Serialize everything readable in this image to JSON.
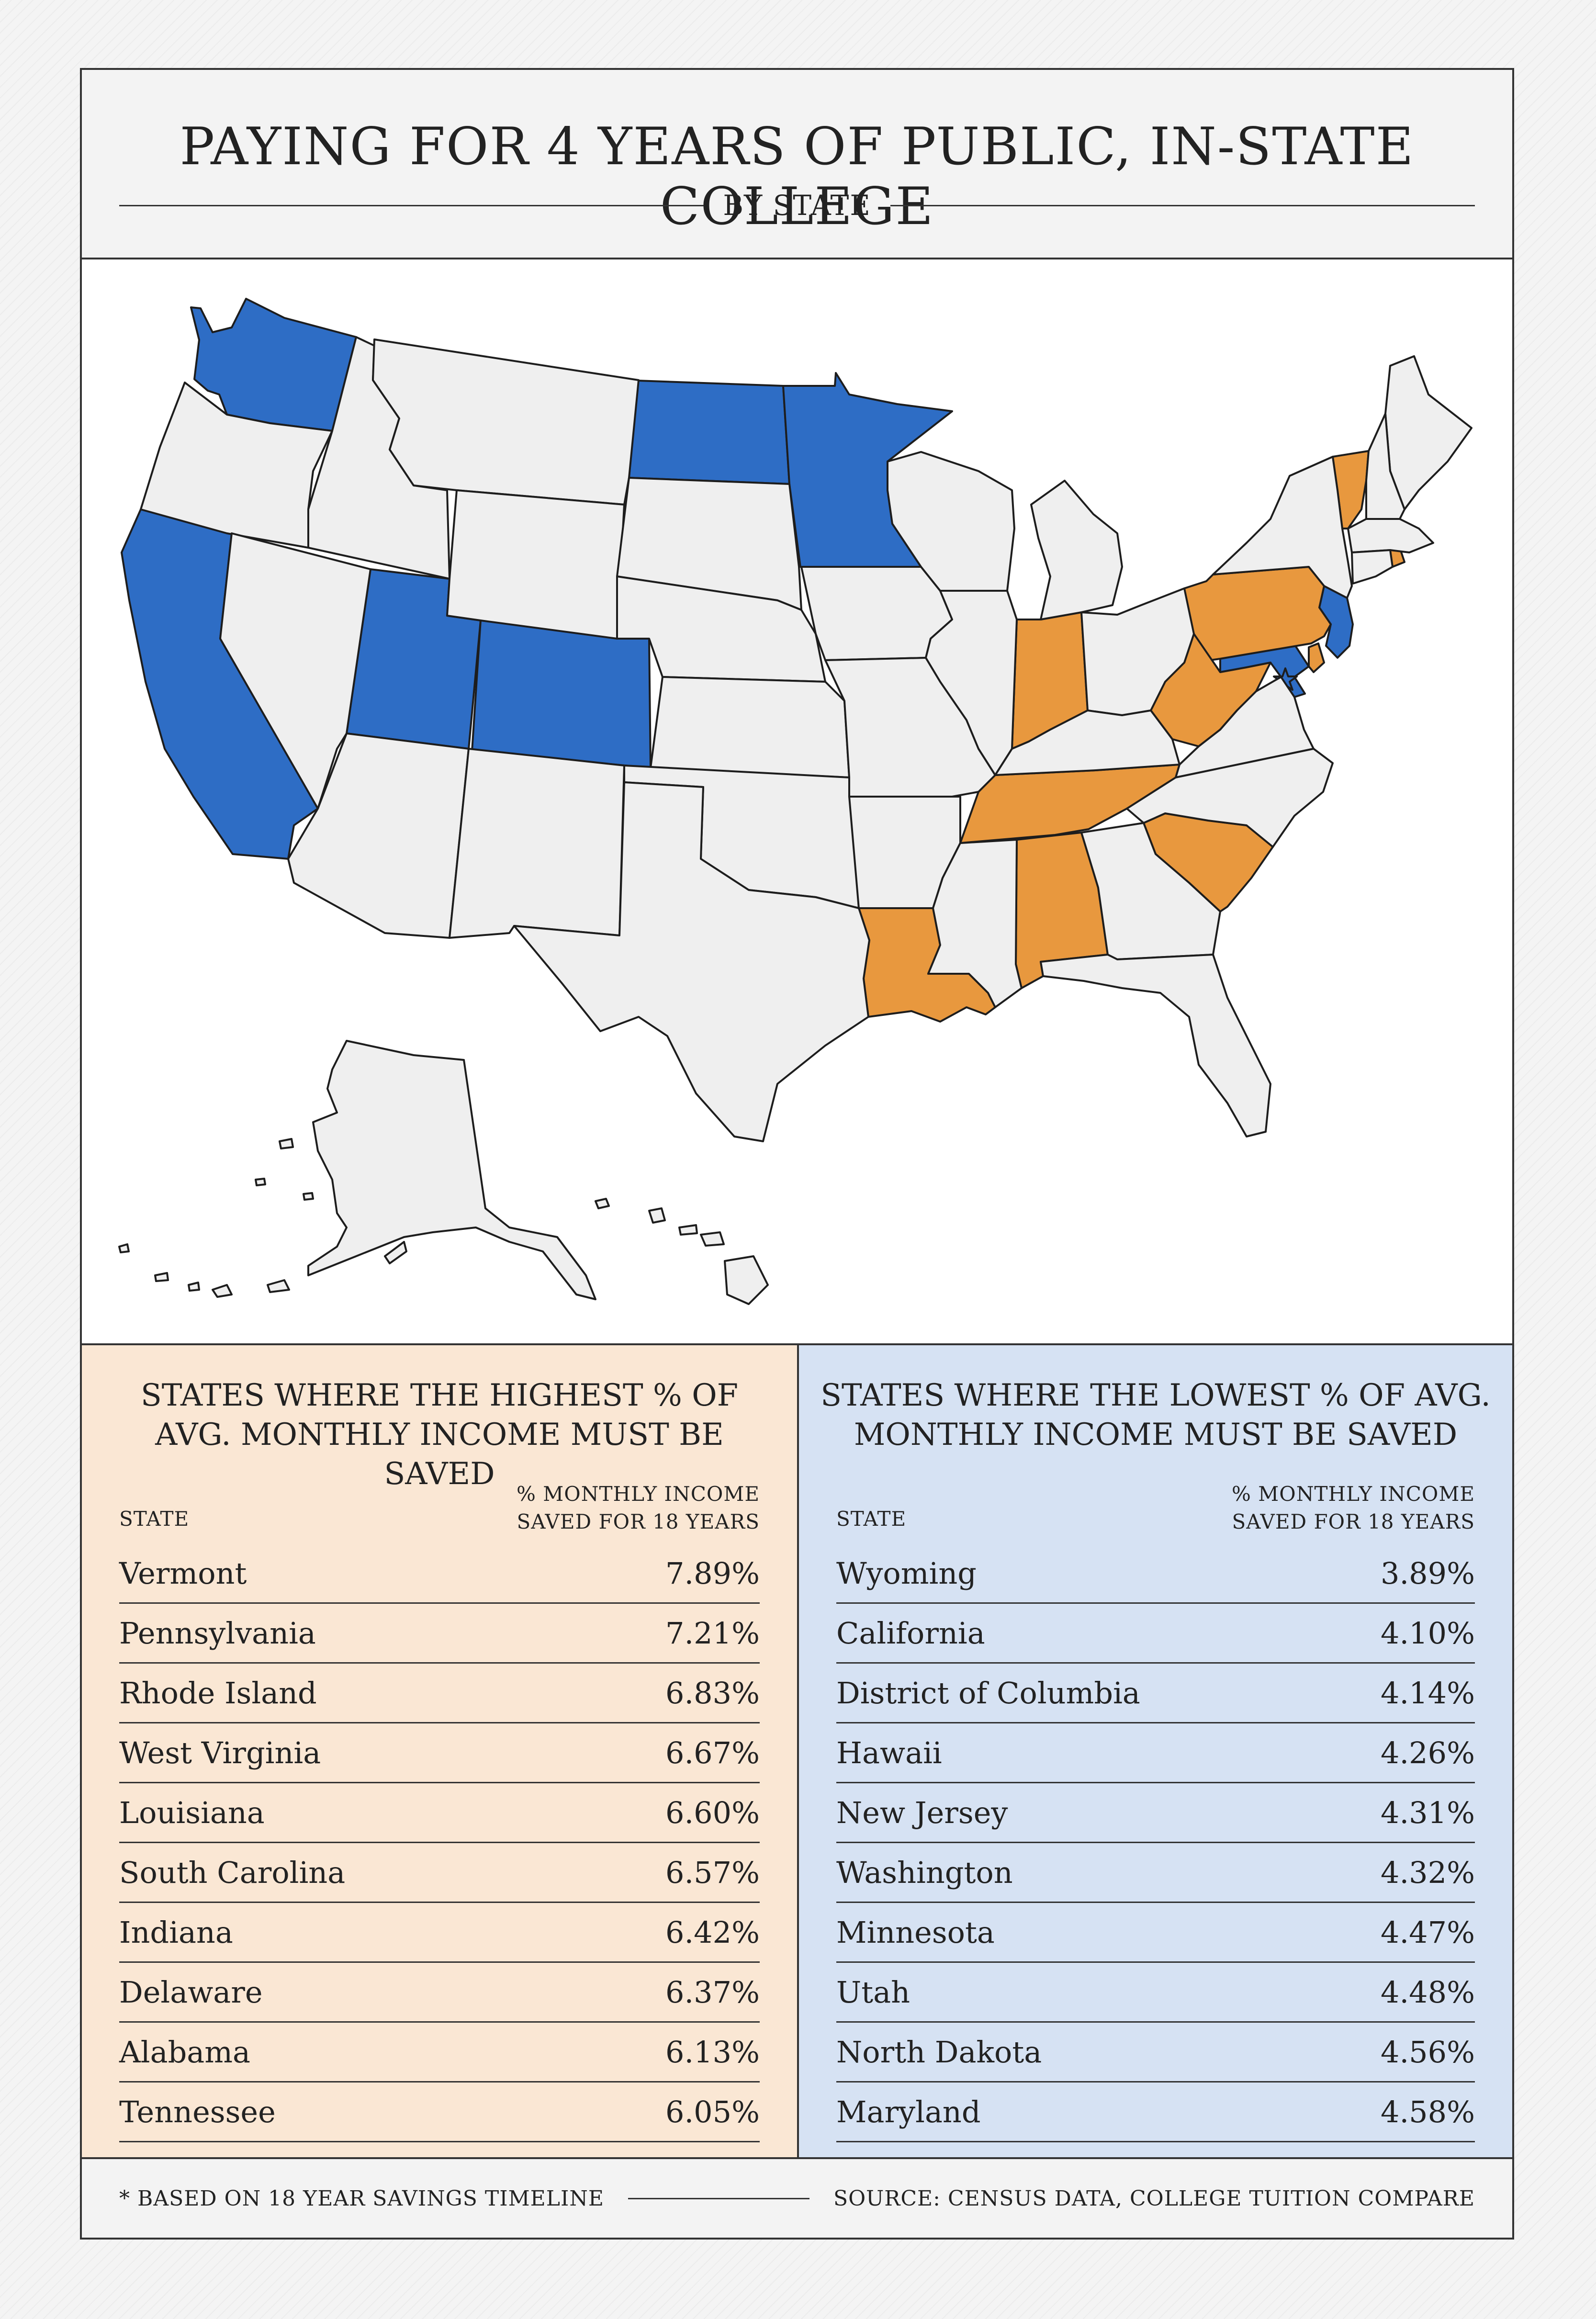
{
  "header": {
    "title": "PAYING FOR 4 YEARS OF PUBLIC, IN-STATE COLLEGE",
    "subtitle": "BY STATE"
  },
  "map": {
    "colors": {
      "high": "#e8983e",
      "low": "#2e6dc5",
      "neutral": "#efefef",
      "border": "#1d1d1d"
    },
    "highlighted_high": [
      "Vermont",
      "Pennsylvania",
      "Rhode Island",
      "West Virginia",
      "Louisiana",
      "South Carolina",
      "Indiana",
      "Delaware",
      "Alabama",
      "Tennessee"
    ],
    "highlighted_low": [
      "Wyoming",
      "California",
      "District of Columbia",
      "Hawaii",
      "New Jersey",
      "Washington",
      "Minnesota",
      "Utah",
      "North Dakota",
      "Maryland"
    ]
  },
  "highest": {
    "title": "STATES WHERE THE HIGHEST % OF AVG. MONTHLY INCOME MUST BE SAVED",
    "col_state": "STATE",
    "col_pct_line1": "% MONTHLY INCOME",
    "col_pct_line2": "SAVED FOR 18 YEARS",
    "rows": [
      {
        "state": "Vermont",
        "pct": "7.89%"
      },
      {
        "state": "Pennsylvania",
        "pct": "7.21%"
      },
      {
        "state": "Rhode Island",
        "pct": "6.83%"
      },
      {
        "state": "West Virginia",
        "pct": "6.67%"
      },
      {
        "state": "Louisiana",
        "pct": "6.60%"
      },
      {
        "state": "South Carolina",
        "pct": "6.57%"
      },
      {
        "state": "Indiana",
        "pct": "6.42%"
      },
      {
        "state": "Delaware",
        "pct": "6.37%"
      },
      {
        "state": "Alabama",
        "pct": "6.13%"
      },
      {
        "state": "Tennessee",
        "pct": "6.05%"
      }
    ]
  },
  "lowest": {
    "title": "STATES WHERE THE LOWEST % OF AVG. MONTHLY INCOME MUST BE SAVED",
    "col_state": "STATE",
    "col_pct_line1": "% MONTHLY INCOME",
    "col_pct_line2": "SAVED FOR 18 YEARS",
    "rows": [
      {
        "state": "Wyoming",
        "pct": "3.89%"
      },
      {
        "state": "California",
        "pct": "4.10%"
      },
      {
        "state": "District of Columbia",
        "pct": "4.14%"
      },
      {
        "state": "Hawaii",
        "pct": "4.26%"
      },
      {
        "state": "New Jersey",
        "pct": "4.31%"
      },
      {
        "state": "Washington",
        "pct": "4.32%"
      },
      {
        "state": "Minnesota",
        "pct": "4.47%"
      },
      {
        "state": "Utah",
        "pct": "4.48%"
      },
      {
        "state": "North Dakota",
        "pct": "4.56%"
      },
      {
        "state": "Maryland",
        "pct": "4.58%"
      }
    ]
  },
  "footer": {
    "note": "* BASED ON 18 YEAR SAVINGS TIMELINE",
    "source": "SOURCE: CENSUS DATA, COLLEGE TUITION COMPARE"
  }
}
